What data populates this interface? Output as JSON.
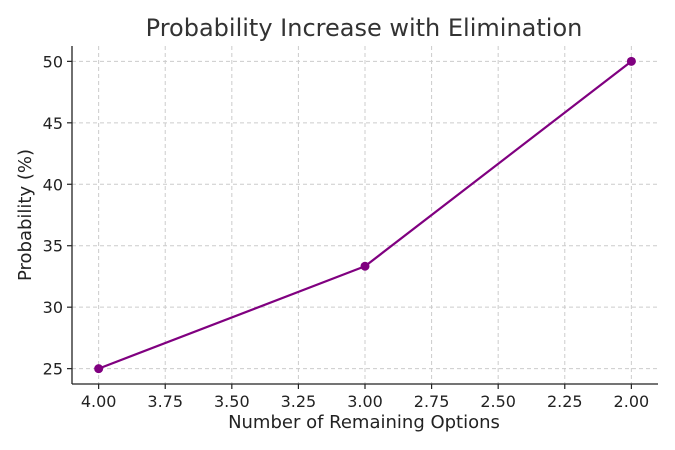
{
  "chart_data": {
    "type": "line",
    "title": "Probability Increase with Elimination",
    "xlabel": "Number of Remaining Options",
    "ylabel": "Probability (%)",
    "x_reversed": true,
    "xlim": [
      4.1,
      1.9
    ],
    "ylim": [
      23.75,
      51.25
    ],
    "x_ticks": [
      4.0,
      3.75,
      3.5,
      3.25,
      3.0,
      2.75,
      2.5,
      2.25,
      2.0
    ],
    "x_tick_labels": [
      "4.00",
      "3.75",
      "3.50",
      "3.25",
      "3.00",
      "2.75",
      "2.50",
      "2.25",
      "2.00"
    ],
    "y_ticks": [
      25,
      30,
      35,
      40,
      45,
      50
    ],
    "y_tick_labels": [
      "25",
      "30",
      "35",
      "40",
      "45",
      "50"
    ],
    "grid": true,
    "series": [
      {
        "color": "#800080",
        "marker": "circle",
        "x": [
          4,
          3,
          2
        ],
        "y": [
          25,
          33.33,
          50
        ]
      }
    ]
  }
}
